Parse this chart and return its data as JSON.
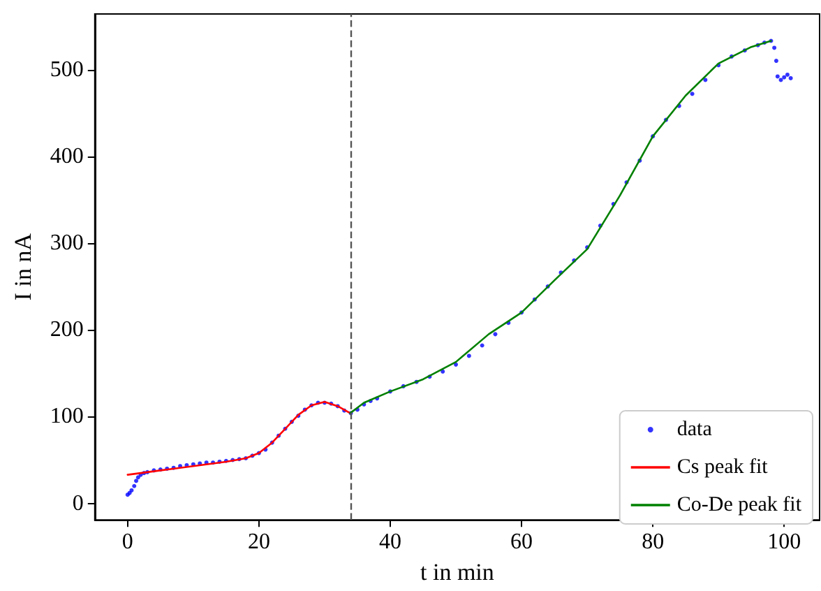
{
  "chart_data": {
    "type": "scatter",
    "xlabel": "t in min",
    "ylabel": "I in nA",
    "xlim": [
      -5,
      105.4
    ],
    "ylim": [
      -19,
      564
    ],
    "xticks": [
      0,
      20,
      40,
      60,
      80,
      100
    ],
    "yticks": [
      0,
      100,
      200,
      300,
      400,
      500
    ],
    "grid": false,
    "legend": "bottom right",
    "marker": "circle",
    "series": [
      {
        "name": "data",
        "color": "#0000ff",
        "x": [
          0,
          0.3,
          0.6,
          1,
          1.3,
          1.6,
          2,
          2.5,
          3,
          4,
          5,
          6,
          7,
          8,
          9,
          10,
          11,
          12,
          13,
          14,
          15,
          16,
          17,
          18,
          19,
          20,
          21,
          22,
          23,
          24,
          25,
          26,
          27,
          28,
          29,
          30,
          31,
          32,
          33,
          34,
          35,
          36,
          37,
          38,
          40,
          42,
          44,
          46,
          48,
          50,
          52,
          54,
          56,
          58,
          60,
          62,
          64,
          66,
          68,
          70,
          72,
          74,
          76,
          78,
          80,
          82,
          84,
          86,
          88,
          90,
          92,
          94,
          96,
          97,
          98,
          98.5,
          98.8,
          99,
          99.5,
          100,
          100.5,
          101
        ],
        "values": [
          10,
          12,
          15,
          20,
          26,
          30,
          33,
          35,
          36,
          38,
          39,
          40,
          41,
          43,
          44,
          45,
          46,
          47,
          47,
          48,
          49,
          50,
          51,
          52,
          55,
          58,
          62,
          70,
          78,
          86,
          94,
          101,
          108,
          113,
          116,
          116,
          115,
          112,
          107,
          104,
          108,
          114,
          118,
          121,
          129,
          135,
          140,
          146,
          152,
          160,
          170,
          182,
          195,
          208,
          220,
          235,
          250,
          266,
          280,
          295,
          320,
          345,
          370,
          395,
          423,
          442,
          458,
          472,
          488,
          505,
          515,
          522,
          528,
          531,
          533,
          525,
          510,
          492,
          488,
          491,
          494,
          490
        ]
      },
      {
        "name": "Cs peak fit",
        "color": "#ff0000",
        "type": "line",
        "marker": "none",
        "x": [
          0,
          5,
          10,
          15,
          18,
          20,
          22,
          24,
          26,
          28,
          30,
          32,
          33.9
        ],
        "values": [
          33,
          38,
          43,
          48,
          52,
          58,
          70,
          86,
          102,
          113,
          117,
          112,
          104
        ]
      },
      {
        "name": "Co-De peak fit",
        "color": "#008000",
        "type": "line",
        "marker": "none",
        "x": [
          33.9,
          36,
          40,
          45,
          50,
          55,
          60,
          65,
          70,
          75,
          80,
          85,
          90,
          95,
          98
        ],
        "values": [
          104,
          116,
          129,
          143,
          163,
          195,
          220,
          257,
          293,
          355,
          423,
          470,
          507,
          526,
          533
        ]
      }
    ],
    "ref_lines": [
      {
        "axis": "x",
        "value": 33.9,
        "color": "#555555",
        "line_style": "dashed"
      }
    ]
  }
}
